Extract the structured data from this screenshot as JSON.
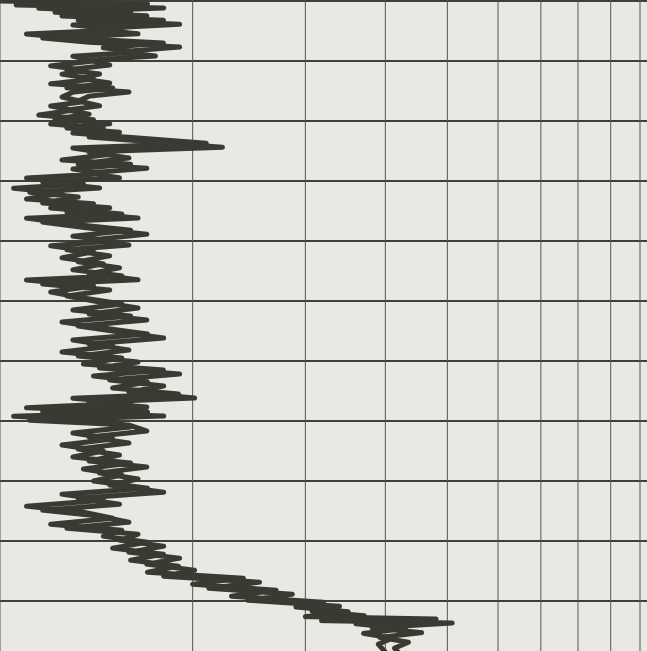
{
  "chart_data": {
    "type": "line",
    "x_scale": "log",
    "x_range_decades": 1,
    "y_range_rows": [
      0,
      10.85
    ],
    "horizontal_gridlines_at_rows": [
      0,
      1,
      2,
      3,
      4,
      5,
      6,
      7,
      8,
      9,
      10
    ],
    "vertical_gridlines_log_multiples": [
      1,
      2,
      3,
      4,
      5,
      6,
      7,
      8,
      9,
      10
    ],
    "grid": true,
    "trace_color": "#3a3a33",
    "grid_color": "#3f3f3c",
    "background_color": "#e9e8e4",
    "series": [
      {
        "points": [
          [
            1.0,
            0.0
          ],
          [
            1.7,
            0.05
          ],
          [
            1.15,
            0.12
          ],
          [
            1.6,
            0.18
          ],
          [
            1.25,
            0.25
          ],
          [
            1.8,
            0.32
          ],
          [
            1.3,
            0.4
          ],
          [
            1.55,
            0.48
          ],
          [
            1.1,
            0.55
          ],
          [
            1.3,
            0.62
          ],
          [
            1.8,
            0.7
          ],
          [
            1.45,
            0.78
          ],
          [
            1.65,
            0.85
          ],
          [
            1.3,
            0.92
          ],
          [
            1.4,
            1.0
          ],
          [
            1.2,
            1.08
          ],
          [
            1.35,
            1.15
          ],
          [
            1.25,
            1.22
          ],
          [
            1.4,
            1.3
          ],
          [
            1.2,
            1.38
          ],
          [
            1.5,
            1.45
          ],
          [
            1.3,
            1.52
          ],
          [
            1.25,
            1.6
          ],
          [
            1.35,
            1.68
          ],
          [
            1.2,
            1.75
          ],
          [
            1.3,
            1.82
          ],
          [
            1.15,
            1.9
          ],
          [
            1.4,
            1.98
          ],
          [
            1.2,
            2.05
          ],
          [
            1.45,
            2.12
          ],
          [
            1.3,
            2.2
          ],
          [
            2.1,
            2.37
          ],
          [
            1.3,
            2.45
          ],
          [
            1.5,
            2.55
          ],
          [
            1.25,
            2.65
          ],
          [
            1.6,
            2.72
          ],
          [
            1.3,
            2.8
          ],
          [
            1.45,
            2.88
          ],
          [
            1.1,
            2.95
          ],
          [
            1.35,
            3.05
          ],
          [
            1.05,
            3.12
          ],
          [
            1.25,
            3.2
          ],
          [
            1.1,
            3.3
          ],
          [
            1.4,
            3.38
          ],
          [
            1.2,
            3.45
          ],
          [
            1.55,
            3.55
          ],
          [
            1.1,
            3.62
          ],
          [
            1.3,
            3.72
          ],
          [
            1.6,
            3.82
          ],
          [
            1.3,
            3.92
          ],
          [
            1.5,
            4.0
          ],
          [
            1.2,
            4.08
          ],
          [
            1.4,
            4.18
          ],
          [
            1.25,
            4.28
          ],
          [
            1.45,
            4.38
          ],
          [
            1.3,
            4.48
          ],
          [
            1.55,
            4.58
          ],
          [
            1.1,
            4.65
          ],
          [
            1.4,
            4.75
          ],
          [
            1.2,
            4.85
          ],
          [
            1.35,
            4.95
          ],
          [
            1.55,
            5.05
          ],
          [
            1.3,
            5.15
          ],
          [
            1.6,
            5.25
          ],
          [
            1.25,
            5.35
          ],
          [
            1.45,
            5.45
          ],
          [
            1.7,
            5.55
          ],
          [
            1.3,
            5.65
          ],
          [
            1.5,
            5.75
          ],
          [
            1.25,
            5.85
          ],
          [
            1.55,
            5.95
          ],
          [
            1.35,
            6.05
          ],
          [
            1.8,
            6.15
          ],
          [
            1.4,
            6.25
          ],
          [
            1.7,
            6.35
          ],
          [
            1.5,
            6.45
          ],
          [
            1.9,
            6.55
          ],
          [
            1.3,
            6.62
          ],
          [
            1.6,
            6.7
          ],
          [
            1.1,
            6.78
          ],
          [
            1.7,
            6.85
          ],
          [
            1.05,
            6.92
          ],
          [
            1.5,
            7.0
          ],
          [
            1.6,
            7.1
          ],
          [
            1.3,
            7.2
          ],
          [
            1.5,
            7.3
          ],
          [
            1.25,
            7.4
          ],
          [
            1.45,
            7.5
          ],
          [
            1.3,
            7.6
          ],
          [
            1.6,
            7.7
          ],
          [
            1.35,
            7.8
          ],
          [
            1.55,
            7.9
          ],
          [
            1.4,
            8.0
          ],
          [
            1.7,
            8.12
          ],
          [
            1.25,
            8.22
          ],
          [
            1.45,
            8.32
          ],
          [
            1.1,
            8.42
          ],
          [
            1.35,
            8.52
          ],
          [
            1.5,
            8.62
          ],
          [
            1.2,
            8.72
          ],
          [
            1.55,
            8.82
          ],
          [
            1.45,
            8.92
          ],
          [
            1.7,
            9.02
          ],
          [
            1.5,
            9.12
          ],
          [
            1.8,
            9.22
          ],
          [
            1.6,
            9.32
          ],
          [
            1.9,
            9.42
          ],
          [
            1.7,
            9.52
          ],
          [
            2.4,
            9.62
          ],
          [
            2.0,
            9.72
          ],
          [
            2.7,
            9.82
          ],
          [
            2.3,
            9.92
          ],
          [
            3.2,
            10.02
          ],
          [
            2.9,
            10.1
          ],
          [
            3.5,
            10.18
          ],
          [
            3.0,
            10.26
          ],
          [
            4.8,
            10.3
          ],
          [
            3.6,
            10.38
          ],
          [
            4.3,
            10.46
          ],
          [
            3.7,
            10.54
          ],
          [
            4.1,
            10.62
          ],
          [
            3.9,
            10.72
          ],
          [
            4.0,
            10.85
          ]
        ]
      }
    ]
  }
}
